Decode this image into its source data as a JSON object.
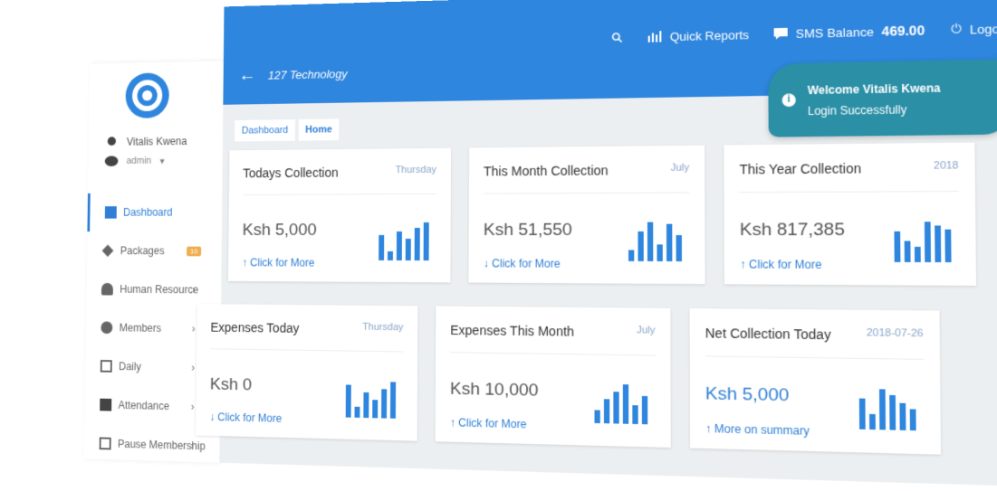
{
  "header": {
    "app_title": "127 Technology",
    "quick_reports": "Quick Reports",
    "sms_label": "SMS Balance",
    "sms_value": "469.00",
    "logout": "Logout"
  },
  "user": {
    "name": "Vitalis Kwena",
    "role": "admin"
  },
  "sidebar": {
    "items": [
      {
        "label": "Dashboard",
        "icon": "dashboard-icon",
        "active": true
      },
      {
        "label": "Packages",
        "icon": "packages-icon",
        "badge": "10"
      },
      {
        "label": "Human Resource",
        "icon": "users-icon",
        "chevron": "›"
      },
      {
        "label": "Members",
        "icon": "members-icon",
        "chevron": "›"
      },
      {
        "label": "Daily",
        "icon": "calendar-icon",
        "chevron": "›"
      },
      {
        "label": "Attendance",
        "icon": "attendance-icon",
        "chevron": "›"
      },
      {
        "label": "Pause Membership",
        "icon": "pause-icon",
        "chevron": "›"
      }
    ]
  },
  "breadcrumb": {
    "dashboard": "Dashboard",
    "home": "Home"
  },
  "cards": [
    {
      "title": "Todays Collection",
      "tag": "Thursday",
      "amount": "Ksh 5,000",
      "link": "↑ Click for More"
    },
    {
      "title": "This Month Collection",
      "tag": "July",
      "amount": "Ksh 51,550",
      "link": "↓ Click for More"
    },
    {
      "title": "This Year Collection",
      "tag": "2018",
      "amount": "Ksh 817,385",
      "link": "↑ Click for More"
    },
    {
      "title": "Expenses Today",
      "tag": "Thursday",
      "amount": "Ksh 0",
      "link": "↓ Click for More"
    },
    {
      "title": "Expenses This Month",
      "tag": "July",
      "amount": "Ksh 10,000",
      "link": "↑ Click for More"
    },
    {
      "title": "Net Collection Today",
      "tag": "2018-07-26",
      "amount": "Ksh 5,000",
      "link": "↑ More on summary"
    }
  ],
  "toast": {
    "title": "Welcome Vitalis Kwena",
    "message": "Login Successfully",
    "close": "×"
  },
  "colors": {
    "primary": "#2f86de",
    "toast": "#2b8fa6",
    "badge": "#f0ad4e"
  }
}
